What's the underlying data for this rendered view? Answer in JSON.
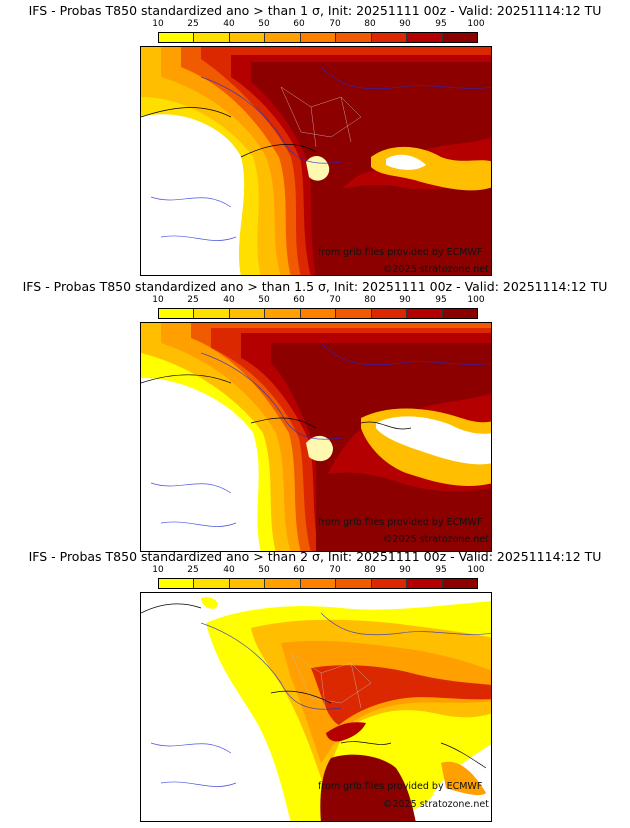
{
  "colorbar": {
    "ticks": [
      "10",
      "25",
      "40",
      "50",
      "60",
      "70",
      "80",
      "90",
      "95",
      "100"
    ],
    "colors": [
      "#ffff00",
      "#ffdf00",
      "#ffbf00",
      "#ff9f00",
      "#ff7f00",
      "#f05a00",
      "#dc2800",
      "#b40000",
      "#8c0000"
    ]
  },
  "panels": [
    {
      "title": "IFS - Probas T850  standardized ano > than 1 σ, Init: 20251111 00z - Valid: 20251114:12 TU",
      "credit_source": "from grib files provided by ECMWF",
      "credit_site": "©2025 stratozone.net"
    },
    {
      "title": "IFS - Probas T850  standardized ano > than 1.5 σ, Init: 20251111 00z - Valid: 20251114:12 TU",
      "credit_source": "from grib files provided by ECMWF",
      "credit_site": "©2025 stratozone.net"
    },
    {
      "title": "IFS - Probas T850  standardized ano > than 2 σ, Init: 20251111 00z - Valid: 20251114:12 TU",
      "credit_source": "from grib files provided by ECMWF",
      "credit_site": "©2025 stratozone.net"
    }
  ]
}
